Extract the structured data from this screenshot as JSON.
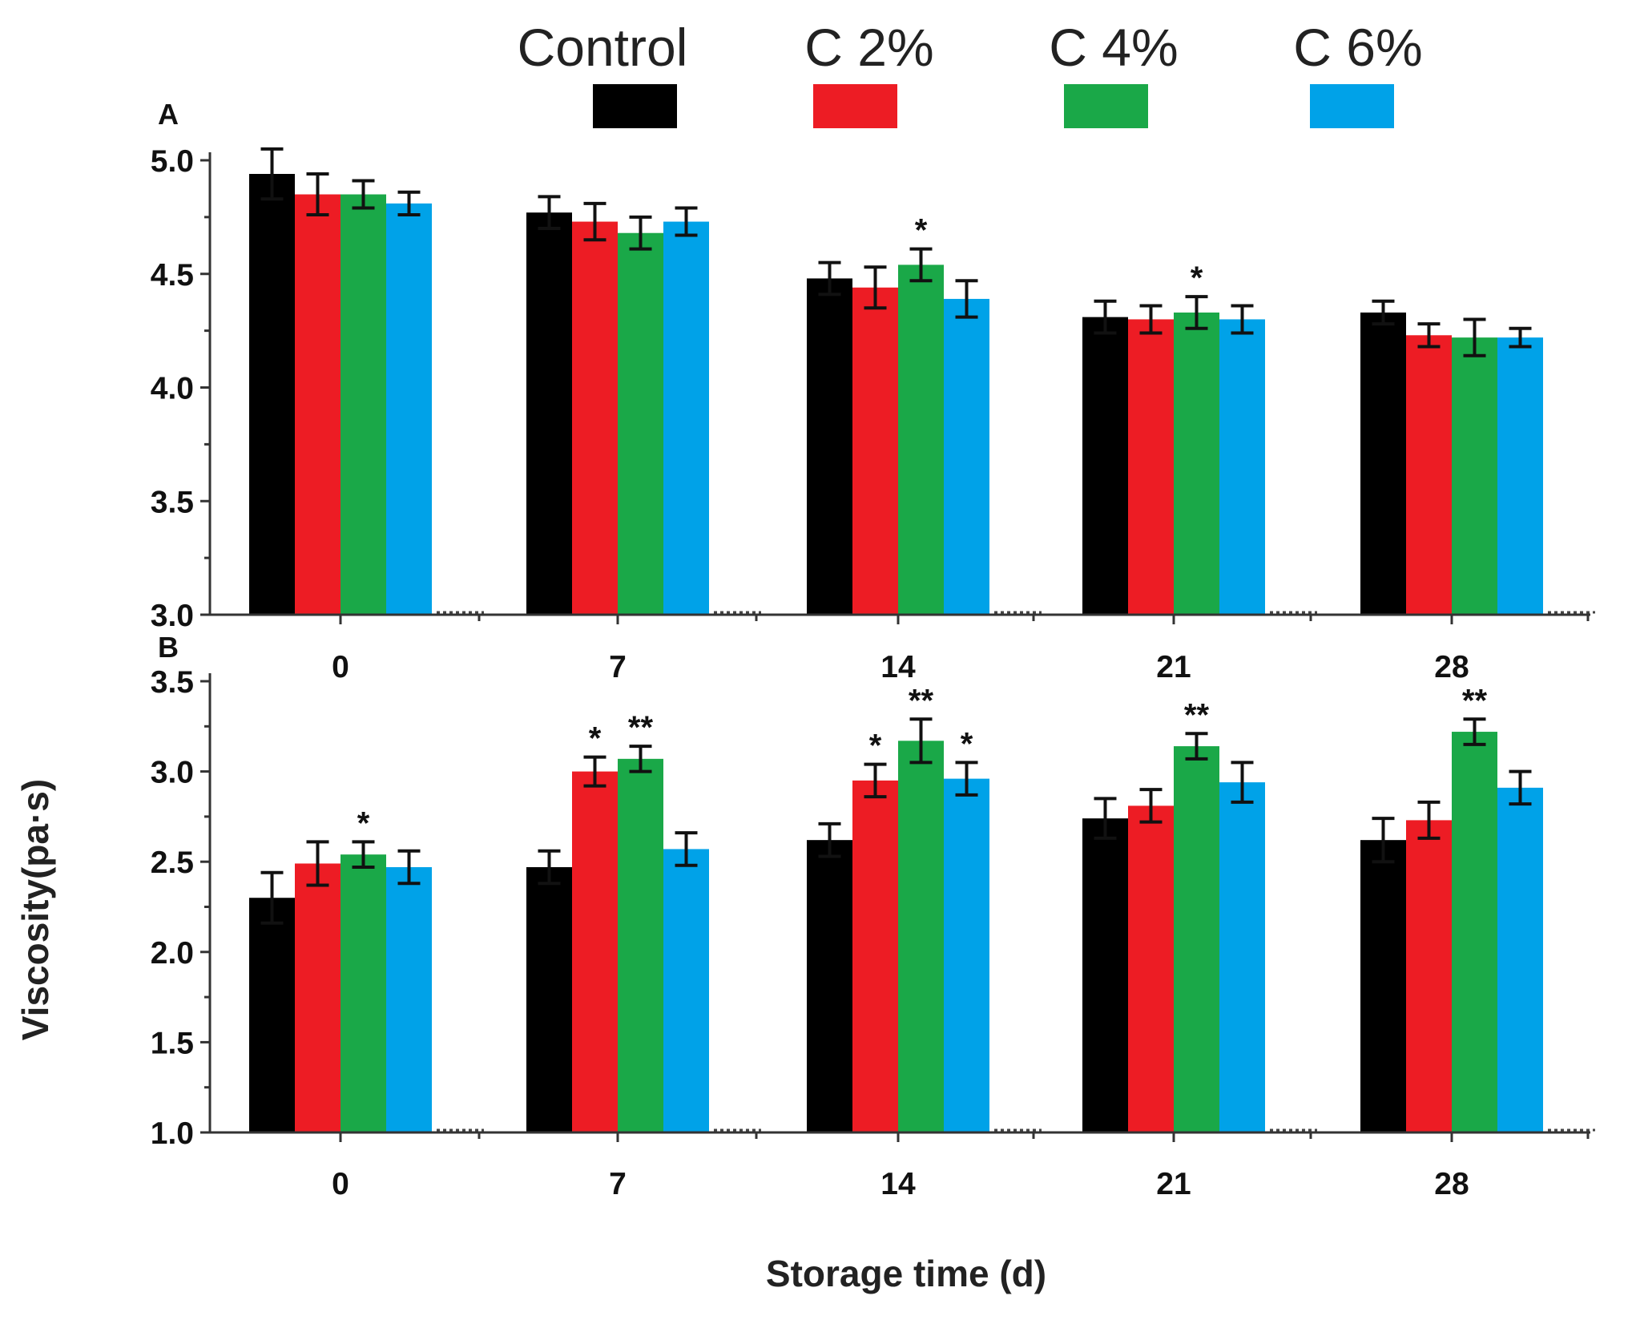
{
  "chart_data": {
    "type": "bar",
    "x_label": "Storage time (d)",
    "y_label": "Viscosity(pa·s)",
    "categories": [
      "0",
      "7",
      "14",
      "21",
      "28"
    ],
    "legend": {
      "placement": "top",
      "entries": [
        {
          "name": "Control",
          "color": "#000000"
        },
        {
          "name": "C 2%",
          "color": "#ed1c24"
        },
        {
          "name": "C 4%",
          "color": "#1aa848"
        },
        {
          "name": "C 6%",
          "color": "#00a2e8"
        }
      ]
    },
    "panels": [
      {
        "label": "A",
        "ylim": [
          3.0,
          5.0
        ],
        "yticks": [
          "3.0",
          "3.5",
          "4.0",
          "4.5",
          "5.0"
        ],
        "series": [
          {
            "name": "Control",
            "values": [
              4.94,
              4.77,
              4.48,
              4.31,
              4.33
            ],
            "errors": [
              0.11,
              0.07,
              0.07,
              0.07,
              0.05
            ]
          },
          {
            "name": "C 2%",
            "values": [
              4.85,
              4.73,
              4.44,
              4.3,
              4.23
            ],
            "errors": [
              0.09,
              0.08,
              0.09,
              0.06,
              0.05
            ]
          },
          {
            "name": "C 4%",
            "values": [
              4.85,
              4.68,
              4.54,
              4.33,
              4.22
            ],
            "errors": [
              0.06,
              0.07,
              0.07,
              0.07,
              0.08
            ]
          },
          {
            "name": "C 6%",
            "values": [
              4.81,
              4.73,
              4.39,
              4.3,
              4.22
            ],
            "errors": [
              0.05,
              0.06,
              0.08,
              0.06,
              0.04
            ]
          }
        ],
        "annotations": [
          {
            "category": "14",
            "series": "C 4%",
            "text": "*"
          },
          {
            "category": "21",
            "series": "C 4%",
            "text": "*"
          }
        ]
      },
      {
        "label": "B",
        "ylim": [
          1.0,
          3.5
        ],
        "yticks": [
          "1.0",
          "1.5",
          "2.0",
          "2.5",
          "3.0",
          "3.5"
        ],
        "series": [
          {
            "name": "Control",
            "values": [
              2.3,
              2.47,
              2.62,
              2.74,
              2.62
            ],
            "errors": [
              0.14,
              0.09,
              0.09,
              0.11,
              0.12
            ]
          },
          {
            "name": "C 2%",
            "values": [
              2.49,
              3.0,
              2.95,
              2.81,
              2.73
            ],
            "errors": [
              0.12,
              0.08,
              0.09,
              0.09,
              0.1
            ]
          },
          {
            "name": "C 4%",
            "values": [
              2.54,
              3.07,
              3.17,
              3.14,
              3.22
            ],
            "errors": [
              0.07,
              0.07,
              0.12,
              0.07,
              0.07
            ]
          },
          {
            "name": "C 6%",
            "values": [
              2.47,
              2.57,
              2.96,
              2.94,
              2.91
            ],
            "errors": [
              0.09,
              0.09,
              0.09,
              0.11,
              0.09
            ]
          }
        ],
        "annotations": [
          {
            "category": "0",
            "series": "C 4%",
            "text": "*"
          },
          {
            "category": "7",
            "series": "C 2%",
            "text": "*"
          },
          {
            "category": "7",
            "series": "C 4%",
            "text": "**"
          },
          {
            "category": "14",
            "series": "C 2%",
            "text": "*"
          },
          {
            "category": "14",
            "series": "C 4%",
            "text": "**"
          },
          {
            "category": "14",
            "series": "C 6%",
            "text": "*"
          },
          {
            "category": "21",
            "series": "C 4%",
            "text": "**"
          },
          {
            "category": "28",
            "series": "C 4%",
            "text": "**"
          }
        ]
      }
    ]
  }
}
